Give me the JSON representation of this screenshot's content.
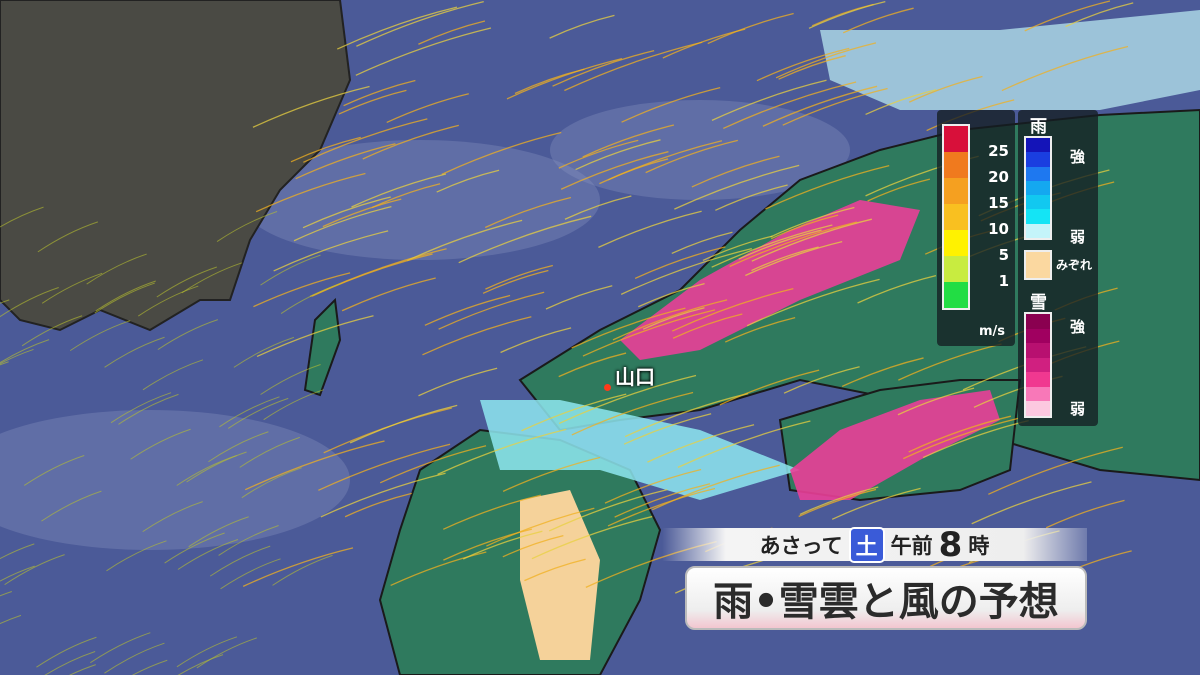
{
  "map": {
    "city": "山口",
    "colors": {
      "sea": "#4b5a98",
      "foreign_land": "#4a4a44",
      "land": "#2f7a5e",
      "rain_light": "#8ee8f0",
      "sleet": "#f5d29a",
      "snow": "#ea3f98"
    }
  },
  "wind_legend": {
    "unit": "m/s",
    "ticks": [
      "25",
      "20",
      "15",
      "10",
      "5",
      "1"
    ],
    "colors": [
      "#d8103a",
      "#f07a1e",
      "#f5a020",
      "#f9c020",
      "#fff200",
      "#c8ec40",
      "#22dd44"
    ]
  },
  "precip_legend": {
    "rain": {
      "title": "雨",
      "strong": "強",
      "weak": "弱",
      "colors": [
        "#1414b8",
        "#1a3ee0",
        "#1e78f0",
        "#14a8f0",
        "#12c8f0",
        "#14e4f5",
        "#c4f4fa"
      ]
    },
    "sleet": {
      "label": "みぞれ",
      "color": "#fbd8a0"
    },
    "snow": {
      "title": "雪",
      "strong": "強",
      "weak": "弱",
      "colors": [
        "#8a0050",
        "#a00060",
        "#b81070",
        "#d02080",
        "#f03890",
        "#f878b8",
        "#fcc8e0"
      ]
    }
  },
  "caption": {
    "when": "あさって",
    "day": "土",
    "ampm": "午前",
    "hour": "8",
    "hour_suffix": "時",
    "title": "雨•雪雲と風の予想"
  }
}
